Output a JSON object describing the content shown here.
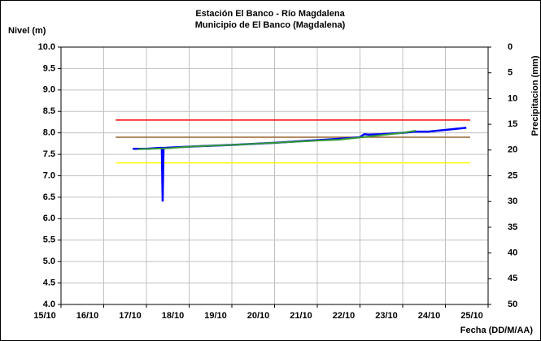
{
  "chart_data": {
    "type": "line",
    "title": "Estación El Banco - Río Magdalena",
    "subtitle": "Municipio de El Banco (Magdalena)",
    "y_label": "Nivel (m)",
    "y2_label": "Precipitacion (mm)",
    "x_label": "Fecha (DD/M/AA)",
    "xlim": [
      15,
      25
    ],
    "xticks": [
      {
        "value": 15,
        "label": "15/10"
      },
      {
        "value": 16,
        "label": "16/10"
      },
      {
        "value": 17,
        "label": "17/10"
      },
      {
        "value": 18,
        "label": "18/10"
      },
      {
        "value": 19,
        "label": "19/10"
      },
      {
        "value": 20,
        "label": "20/10"
      },
      {
        "value": 21,
        "label": "21/10"
      },
      {
        "value": 22,
        "label": "22/10"
      },
      {
        "value": 23,
        "label": "23/10"
      },
      {
        "value": 24,
        "label": "24/10"
      },
      {
        "value": 25,
        "label": "25/10"
      }
    ],
    "ylim": [
      4,
      10
    ],
    "yticks": [
      {
        "value": 4,
        "label": "4.0"
      },
      4.5,
      {
        "value": 5,
        "label": "5.0"
      },
      5.5,
      {
        "value": 6,
        "label": "6.0"
      },
      6.5,
      {
        "value": 7,
        "label": "7.0"
      },
      7.5,
      {
        "value": 8,
        "label": "8.0"
      },
      8.5,
      {
        "value": 9,
        "label": "9.0"
      },
      9.5,
      {
        "value": 10,
        "label": "10.0"
      }
    ],
    "y2lim": [
      50,
      0
    ],
    "y2ticks": [
      0,
      5,
      10,
      15,
      20,
      25,
      30,
      35,
      40,
      45,
      50
    ],
    "grid": true,
    "series": [
      {
        "color": "#ff0000",
        "width": 1.5,
        "x": [
          16.28,
          24.58
        ],
        "values": [
          8.3,
          8.3
        ]
      },
      {
        "color": "#996633",
        "width": 1.5,
        "x": [
          16.28,
          24.58
        ],
        "values": [
          7.9,
          7.9
        ]
      },
      {
        "color": "#ffff00",
        "width": 1.5,
        "x": [
          16.28,
          24.58
        ],
        "values": [
          7.3,
          7.3
        ]
      },
      {
        "color": "#0000ff",
        "width": 2.5,
        "x": [
          16.68,
          17.0,
          17.3,
          17.36,
          17.38,
          17.4,
          17.6,
          18,
          19,
          20,
          21,
          21.8,
          22.0,
          22.1,
          22.2,
          22.5,
          23,
          23.3,
          23.6,
          24,
          24.3,
          24.49
        ],
        "values": [
          7.63,
          7.63,
          7.65,
          7.65,
          6.4,
          7.65,
          7.66,
          7.68,
          7.72,
          7.77,
          7.83,
          7.88,
          7.9,
          7.97,
          7.96,
          7.97,
          8.0,
          8.03,
          8.03,
          8.07,
          8.1,
          8.12
        ]
      },
      {
        "color": "#339933",
        "width": 2,
        "x": [
          16.8,
          17.5,
          18,
          19,
          20,
          21,
          21.5,
          23,
          23.3
        ],
        "values": [
          7.62,
          7.64,
          7.68,
          7.72,
          7.77,
          7.82,
          7.84,
          8.0,
          8.05
        ]
      }
    ]
  }
}
